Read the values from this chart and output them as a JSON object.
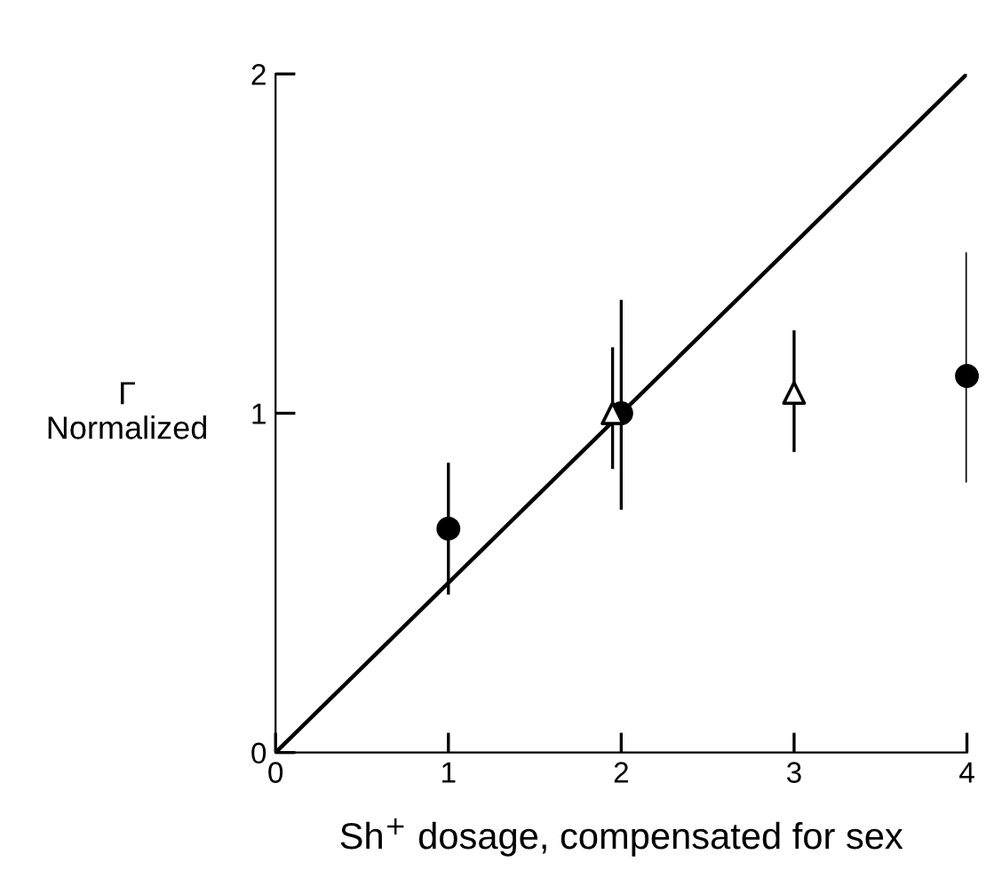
{
  "chart_data": {
    "type": "scatter",
    "xlabel": "Sh$^{+}$ dosage, compensated for sex",
    "ylabel": "Γ\nNormalized",
    "xlim": [
      0,
      4
    ],
    "ylim": [
      0,
      2
    ],
    "xticks": [
      0,
      1,
      2,
      3,
      4
    ],
    "yticks": [
      0,
      1,
      2
    ],
    "grid": false,
    "legend": false,
    "series": [
      {
        "color": "#000000",
        "marker": "circle",
        "x": [
          1,
          2,
          4
        ],
        "values": [
          0.66,
          1.0,
          1.11
        ],
        "errors": [
          [
            0.47,
            0.85
          ],
          [
            0.72,
            1.33
          ],
          [
            0.8,
            1.47
          ]
        ]
      },
      {
        "color": "#000000",
        "marker": "triangle",
        "x": [
          1.95,
          3
        ],
        "values": [
          1.0,
          1.06
        ],
        "errors": [
          [
            0.84,
            1.19
          ],
          [
            0.89,
            1.24
          ]
        ]
      },
      {
        "type": "line",
        "color": "#000000",
        "marker": "none",
        "x": [
          0,
          4
        ],
        "values": [
          0,
          2
        ]
      }
    ]
  }
}
